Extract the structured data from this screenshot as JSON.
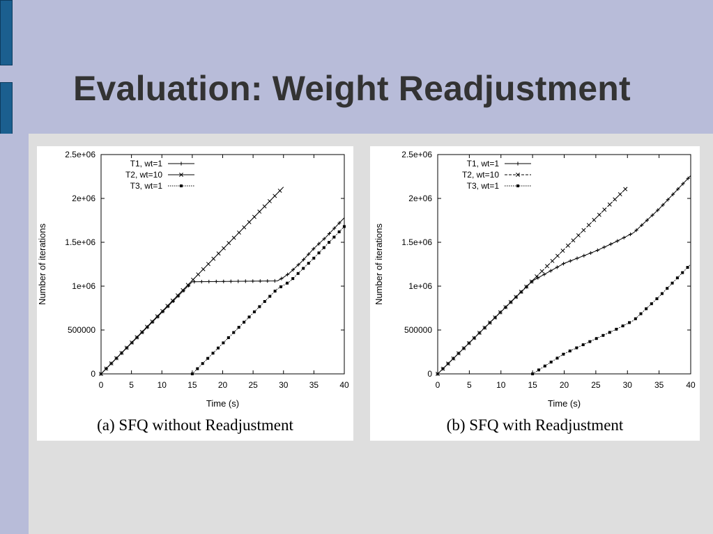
{
  "slide": {
    "title": "Evaluation: Weight Readjustment"
  },
  "chart_data": [
    {
      "type": "line",
      "caption": "(a) SFQ without Readjustment",
      "xlabel": "Time (s)",
      "ylabel": "Number of iterations",
      "xlim": [
        0,
        40
      ],
      "ylim": [
        0,
        2500000
      ],
      "xticks": [
        "0",
        "5",
        "10",
        "15",
        "20",
        "25",
        "30",
        "35",
        "40"
      ],
      "yticks": [
        "0",
        "500000",
        "1e+06",
        "1.5e+06",
        "2e+06",
        "2.5e+06"
      ],
      "grid": false,
      "legend_position": "top-left",
      "series": [
        {
          "name": "T1, wt=1",
          "marker": "plus",
          "dash": "",
          "x": [
            0,
            15,
            29,
            30,
            31,
            33,
            35,
            37,
            40
          ],
          "y": [
            0,
            1050000,
            1060000,
            1100000,
            1150000,
            1280000,
            1430000,
            1560000,
            1780000
          ]
        },
        {
          "name": "T2, wt=10",
          "marker": "cross",
          "dash": "",
          "x": [
            0,
            30
          ],
          "y": [
            0,
            2130000
          ]
        },
        {
          "name": "T3, wt=1",
          "marker": "square",
          "dash": "1.5,1.5",
          "x": [
            15,
            29,
            31,
            35,
            40
          ],
          "y": [
            0,
            970000,
            1050000,
            1320000,
            1680000
          ]
        }
      ]
    },
    {
      "type": "line",
      "caption": "(b) SFQ with Readjustment",
      "xlabel": "Time (s)",
      "ylabel": "Number of iterations",
      "xlim": [
        0,
        40
      ],
      "ylim": [
        0,
        2500000
      ],
      "xticks": [
        "0",
        "5",
        "10",
        "15",
        "20",
        "25",
        "30",
        "35",
        "40"
      ],
      "yticks": [
        "0",
        "500000",
        "1e+06",
        "1.5e+06",
        "2e+06",
        "2.5e+06"
      ],
      "grid": false,
      "legend_position": "top-left",
      "series": [
        {
          "name": "T1, wt=1",
          "marker": "plus",
          "dash": "",
          "x": [
            0,
            15,
            17,
            20,
            25,
            28,
            31,
            35,
            40
          ],
          "y": [
            0,
            1060000,
            1140000,
            1260000,
            1400000,
            1500000,
            1610000,
            1880000,
            2260000
          ]
        },
        {
          "name": "T2, wt=10",
          "marker": "cross",
          "dash": "4,2",
          "x": [
            0,
            30
          ],
          "y": [
            0,
            2130000
          ]
        },
        {
          "name": "T3, wt=1",
          "marker": "square",
          "dash": "1.5,1.5",
          "x": [
            15,
            20,
            25,
            28,
            31,
            35,
            40
          ],
          "y": [
            0,
            230000,
            400000,
            500000,
            610000,
            880000,
            1250000
          ]
        }
      ]
    }
  ]
}
